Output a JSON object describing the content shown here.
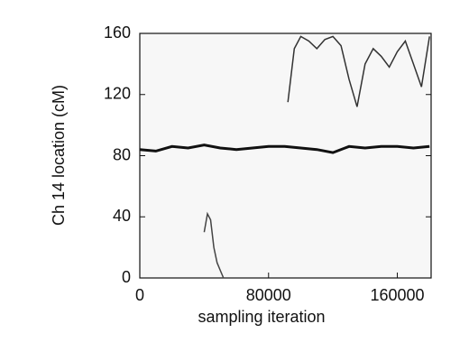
{
  "chart_data": {
    "type": "line",
    "x_label": "sampling iteration",
    "y_label": "Ch 14 location (cM)",
    "xlim": [
      0,
      181000
    ],
    "xticks": [
      0,
      80000,
      160000
    ],
    "ylim": [
      0,
      160
    ],
    "yticks": [
      0,
      40,
      80,
      120,
      160
    ],
    "series": [
      {
        "color": "#111111",
        "x": [
          0,
          10000,
          20000,
          30000,
          40000,
          50000,
          60000,
          70000,
          80000,
          90000,
          100000,
          110000,
          120000,
          130000,
          140000,
          150000,
          160000,
          170000,
          180000
        ],
        "values": [
          84,
          83,
          86,
          85,
          87,
          85,
          84,
          85,
          86,
          86,
          85,
          84,
          82,
          86,
          85,
          86,
          86,
          85,
          86
        ]
      },
      {
        "color": "#333333",
        "x": [
          92000,
          96000,
          100000,
          105000,
          110000,
          115000,
          120000,
          125000,
          130000,
          135000,
          140000,
          145000,
          150000,
          155000,
          160000,
          165000,
          170000,
          175000,
          180000
        ],
        "values": [
          115,
          150,
          158,
          155,
          150,
          156,
          158,
          152,
          130,
          112,
          140,
          150,
          145,
          138,
          148,
          155,
          140,
          125,
          158
        ]
      },
      {
        "color": "#444444",
        "x": [
          40000,
          42000,
          44000,
          46000,
          48000,
          50000,
          52000
        ],
        "values": [
          30,
          42,
          38,
          20,
          10,
          5,
          0
        ]
      }
    ]
  }
}
